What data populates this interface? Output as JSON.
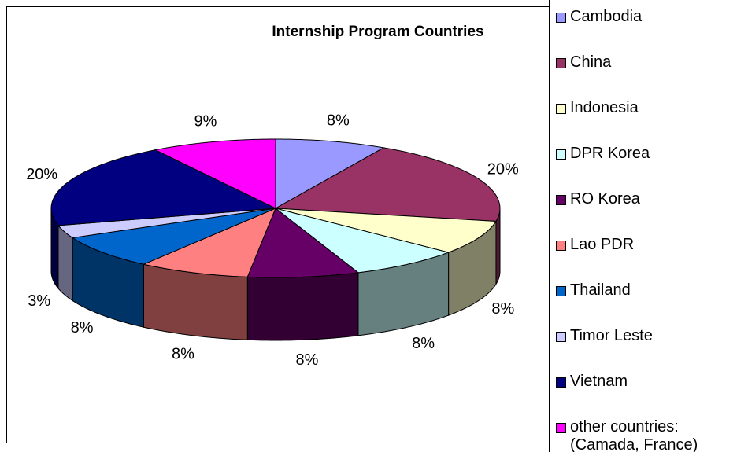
{
  "chart_data": {
    "type": "pie",
    "title": "Internship Program Countries",
    "categories": [
      "Cambodia",
      "China",
      "Indonesia",
      "DPR Korea",
      "RO Korea",
      "Lao PDR",
      "Thailand",
      "Timor Leste",
      "Vietnam",
      "other countries: (Camada, France)"
    ],
    "values": [
      8,
      20,
      8,
      8,
      8,
      8,
      8,
      3,
      20,
      9
    ],
    "value_labels": [
      "8%",
      "20%",
      "8%",
      "8%",
      "8%",
      "8%",
      "8%",
      "3%",
      "20%",
      "9%"
    ],
    "colors": [
      "#9999FF",
      "#993366",
      "#FFFFCC",
      "#CCFFFF",
      "#660066",
      "#FF8080",
      "#0066CC",
      "#CCCCFF",
      "#000080",
      "#FF00FF"
    ],
    "legend": "right"
  }
}
